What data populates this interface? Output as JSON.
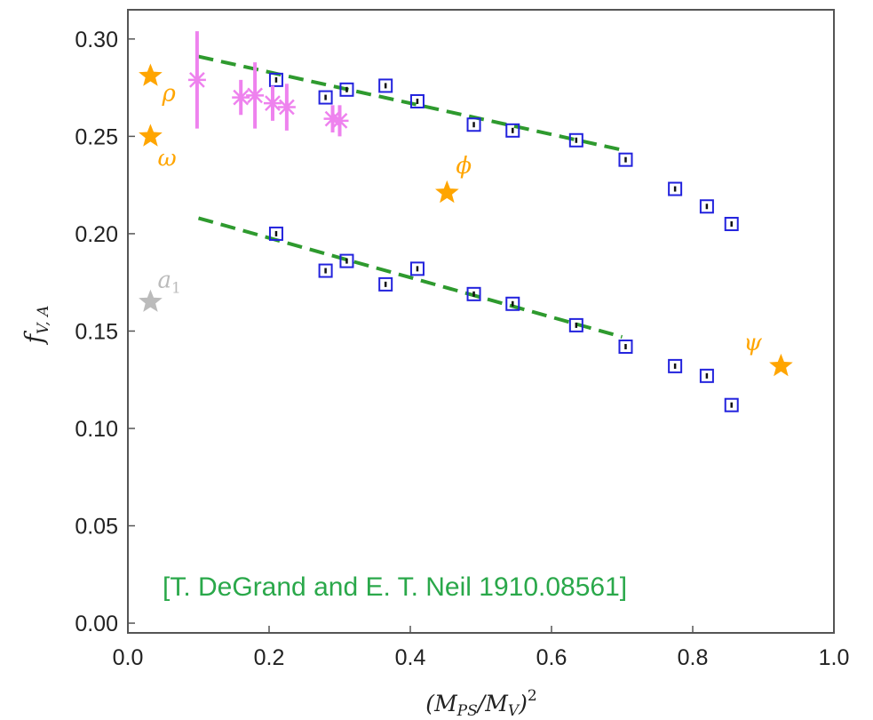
{
  "chart_data": {
    "type": "scatter",
    "title": "",
    "xlabel_parts": {
      "open": "(",
      "M1": "M",
      "sub1": "PS",
      "slash": "/",
      "M2": "M",
      "sub2": "V",
      "close": ")",
      "sup": "2"
    },
    "ylabel_parts": {
      "f": "f",
      "sub": "V, A"
    },
    "xlim": [
      0.0,
      1.0
    ],
    "ylim": [
      -0.005,
      0.315
    ],
    "xticks": [
      "0.0",
      "0.2",
      "0.4",
      "0.6",
      "0.8",
      "1.0"
    ],
    "yticks": [
      "0.00",
      "0.05",
      "0.10",
      "0.15",
      "0.20",
      "0.25",
      "0.30"
    ],
    "grid": false,
    "annotation": "[T. DeGrand and E. T. Neil 1910.08561]",
    "colors": {
      "squares": "#2222dd",
      "crosses": "#ee82ee",
      "fit": "#2e9a2e",
      "stars": "#ffa500",
      "a1": "#bbbbbb",
      "annotation": "#2aa84a"
    },
    "series": [
      {
        "marker": "open-square",
        "points": [
          {
            "x": 0.21,
            "y": 0.279
          },
          {
            "x": 0.28,
            "y": 0.27
          },
          {
            "x": 0.31,
            "y": 0.274
          },
          {
            "x": 0.365,
            "y": 0.276
          },
          {
            "x": 0.41,
            "y": 0.268
          },
          {
            "x": 0.49,
            "y": 0.256
          },
          {
            "x": 0.545,
            "y": 0.253
          },
          {
            "x": 0.635,
            "y": 0.248
          },
          {
            "x": 0.705,
            "y": 0.238
          },
          {
            "x": 0.775,
            "y": 0.223
          },
          {
            "x": 0.82,
            "y": 0.214
          },
          {
            "x": 0.855,
            "y": 0.205
          }
        ]
      },
      {
        "marker": "open-square",
        "points": [
          {
            "x": 0.21,
            "y": 0.2
          },
          {
            "x": 0.28,
            "y": 0.181
          },
          {
            "x": 0.31,
            "y": 0.186
          },
          {
            "x": 0.365,
            "y": 0.174
          },
          {
            "x": 0.41,
            "y": 0.182
          },
          {
            "x": 0.49,
            "y": 0.169
          },
          {
            "x": 0.545,
            "y": 0.164
          },
          {
            "x": 0.635,
            "y": 0.153
          },
          {
            "x": 0.705,
            "y": 0.142
          },
          {
            "x": 0.775,
            "y": 0.132
          },
          {
            "x": 0.82,
            "y": 0.127
          },
          {
            "x": 0.855,
            "y": 0.112
          }
        ]
      },
      {
        "marker": "cross",
        "points": [
          {
            "x": 0.098,
            "y": 0.279,
            "err": 0.025
          },
          {
            "x": 0.16,
            "y": 0.27,
            "err": 0.009
          },
          {
            "x": 0.18,
            "y": 0.271,
            "err": 0.017
          },
          {
            "x": 0.205,
            "y": 0.267,
            "err": 0.009
          },
          {
            "x": 0.225,
            "y": 0.265,
            "err": 0.012
          },
          {
            "x": 0.29,
            "y": 0.259,
            "err": 0.007
          },
          {
            "x": 0.3,
            "y": 0.258,
            "err": 0.008
          }
        ]
      },
      {
        "marker": "dashed-fit",
        "lines": [
          {
            "x": [
              0.1,
              0.7
            ],
            "y": [
              0.291,
              0.243
            ]
          },
          {
            "x": [
              0.1,
              0.7
            ],
            "y": [
              0.208,
              0.147
            ]
          }
        ]
      },
      {
        "marker": "star",
        "points": [
          {
            "label": "ρ",
            "x": 0.032,
            "y": 0.281,
            "color": "#ffa500"
          },
          {
            "label": "ω",
            "x": 0.032,
            "y": 0.25,
            "color": "#ffa500"
          },
          {
            "label": "ϕ",
            "x": 0.452,
            "y": 0.221,
            "color": "#ffa500"
          },
          {
            "label": "ψ",
            "x": 0.925,
            "y": 0.132,
            "color": "#ffa500"
          }
        ]
      }
    ],
    "a1": {
      "label": "a",
      "sub": "1",
      "x": 0.032,
      "y": 0.165,
      "color": "#bbbbbb"
    }
  }
}
